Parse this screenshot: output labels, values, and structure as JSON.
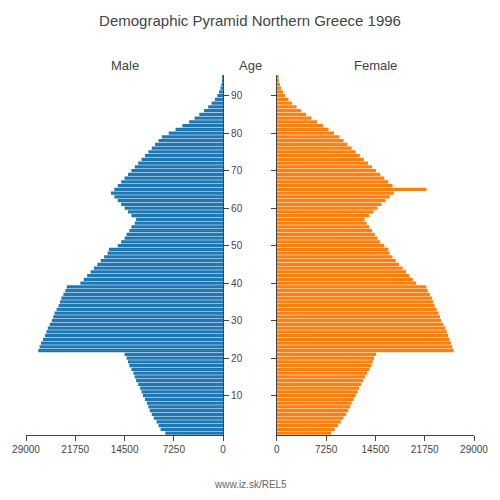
{
  "chart_data": {
    "type": "bar",
    "orientation": "horizontal",
    "title": "Demographic Pyramid Northern Greece 1996",
    "ylabel": "Age",
    "annotations": [
      {
        "text": "www.iz.sk/REL5"
      }
    ],
    "categories": [
      null,
      null,
      null,
      null,
      null,
      null,
      null,
      null,
      null,
      null,
      "10",
      null,
      null,
      null,
      null,
      null,
      null,
      null,
      null,
      null,
      "20",
      null,
      null,
      null,
      null,
      null,
      null,
      null,
      null,
      null,
      "30",
      null,
      null,
      null,
      null,
      null,
      null,
      null,
      null,
      null,
      "40",
      null,
      null,
      null,
      null,
      null,
      null,
      null,
      null,
      null,
      "50",
      null,
      null,
      null,
      null,
      null,
      null,
      null,
      null,
      null,
      "60",
      null,
      null,
      null,
      null,
      null,
      null,
      null,
      null,
      null,
      "70",
      null,
      null,
      null,
      null,
      null,
      null,
      null,
      null,
      null,
      "80",
      null,
      null,
      null,
      null,
      null,
      null,
      null,
      null,
      null,
      "90",
      null,
      null,
      null,
      null,
      null
    ],
    "series": [
      {
        "name": "Male",
        "values": [
          8500,
          9200,
          9500,
          9800,
          10200,
          10500,
          10800,
          11000,
          11200,
          11500,
          11800,
          12000,
          12200,
          12500,
          12800,
          13000,
          13200,
          13500,
          13800,
          14000,
          14200,
          14500,
          27200,
          27000,
          26800,
          26500,
          26200,
          26000,
          25800,
          25500,
          25200,
          25000,
          24800,
          24500,
          24200,
          24000,
          23800,
          23500,
          23200,
          23000,
          21000,
          20500,
          20000,
          19500,
          19000,
          18500,
          18000,
          17500,
          17000,
          16800,
          15500,
          15000,
          14500,
          14200,
          13800,
          13500,
          13000,
          12800,
          13500,
          14000,
          14500,
          15000,
          15500,
          16000,
          16500,
          16000,
          15500,
          15000,
          14500,
          14000,
          13500,
          13000,
          12500,
          12000,
          11500,
          11000,
          10500,
          10000,
          9500,
          9000,
          8000,
          7000,
          6000,
          5000,
          4200,
          3500,
          2800,
          2200,
          1700,
          1200,
          850,
          600,
          400,
          250,
          150,
          80
        ]
      },
      {
        "name": "Female",
        "values": [
          8000,
          8500,
          9000,
          9400,
          9800,
          10200,
          10500,
          10800,
          11000,
          11300,
          11600,
          11900,
          12100,
          12400,
          12700,
          13000,
          13300,
          13600,
          13900,
          14100,
          14300,
          14600,
          26000,
          25800,
          25600,
          25400,
          25200,
          25000,
          24800,
          24500,
          24200,
          24000,
          23800,
          23500,
          23200,
          23000,
          22800,
          22500,
          22200,
          22000,
          20500,
          20000,
          19500,
          19000,
          18500,
          18000,
          17500,
          17000,
          16600,
          16400,
          15800,
          15200,
          14800,
          14400,
          14000,
          13600,
          13200,
          12900,
          13600,
          14200,
          14800,
          15400,
          16000,
          16600,
          17200,
          22000,
          17000,
          16400,
          15800,
          15200,
          14600,
          14000,
          13400,
          12800,
          12200,
          11600,
          11000,
          10400,
          9800,
          9200,
          8400,
          7600,
          6800,
          5900,
          5100,
          4300,
          3600,
          2900,
          2200,
          1700,
          1200,
          900,
          650,
          450,
          300,
          180
        ]
      }
    ],
    "xlim": [
      0,
      29000
    ],
    "xticks": [
      0,
      7250,
      14500,
      21750,
      29000
    ],
    "grid": false,
    "legend": false
  }
}
